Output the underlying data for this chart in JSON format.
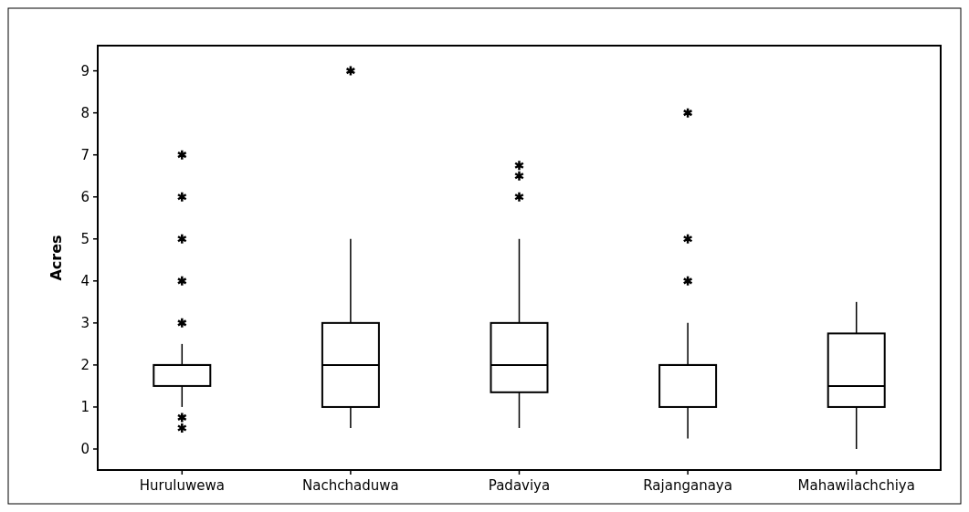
{
  "chart_data": {
    "type": "box",
    "ylabel": "Acres",
    "categories": [
      "Huruluwewa",
      "Nachchaduwa",
      "Padaviya",
      "Rajanganaya",
      "Mahawilachchiya"
    ],
    "boxes": [
      {
        "low": 1,
        "q1": 1.5,
        "median": 2,
        "q3": 2,
        "high": 2.5,
        "outliers": [
          3,
          4,
          5,
          6,
          7,
          0.75,
          0.5
        ]
      },
      {
        "low": 0.5,
        "q1": 1,
        "median": 2,
        "q3": 3,
        "high": 5,
        "outliers": [
          9
        ]
      },
      {
        "low": 0.5,
        "q1": 1.35,
        "median": 2,
        "q3": 3,
        "high": 5,
        "outliers": [
          6,
          6.5,
          6.75
        ]
      },
      {
        "low": 0.25,
        "q1": 1,
        "median": 2,
        "q3": 2,
        "high": 3,
        "outliers": [
          4,
          5,
          8
        ]
      },
      {
        "low": 0,
        "q1": 1,
        "median": 1.5,
        "q3": 2.75,
        "high": 3.5
      }
    ],
    "color": "#000000",
    "marker": "star",
    "ylim": [
      -0.5,
      9.6
    ],
    "yticks": [
      0,
      1,
      2,
      3,
      4,
      5,
      6,
      7,
      8,
      9
    ],
    "grid": false
  }
}
